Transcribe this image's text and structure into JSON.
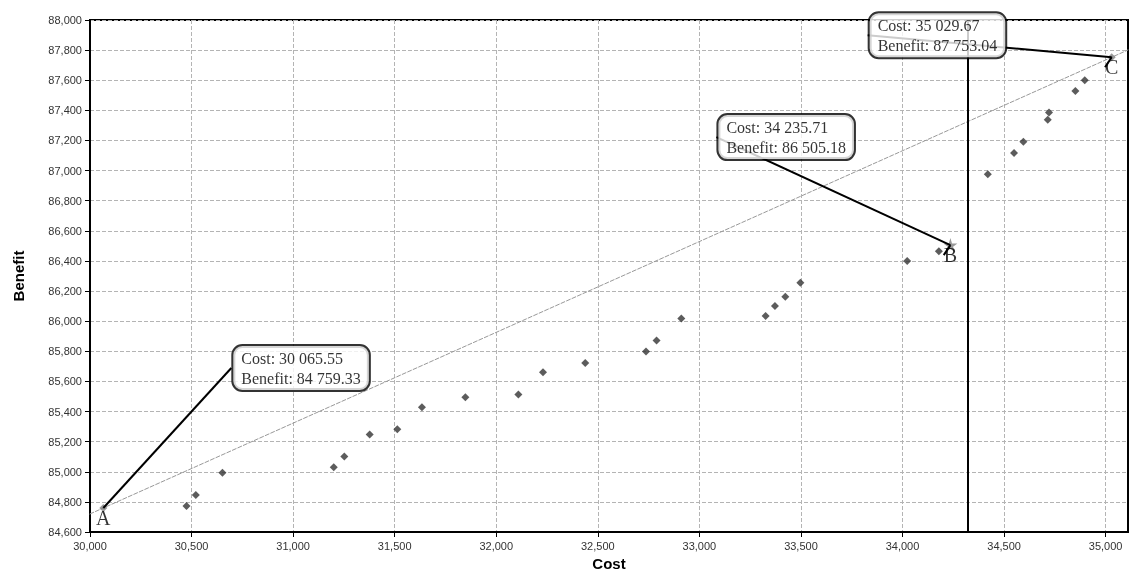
{
  "chart_data": {
    "type": "scatter",
    "xlabel": "Cost",
    "ylabel": "Benefit",
    "xlim": [
      30000,
      35110
    ],
    "ylim": [
      84600,
      88000
    ],
    "xticks": [
      {
        "value": 30000,
        "label": "30,000"
      },
      {
        "value": 30500,
        "label": "30,500"
      },
      {
        "value": 31000,
        "label": "31,000"
      },
      {
        "value": 31500,
        "label": "31,500"
      },
      {
        "value": 32000,
        "label": "32,000"
      },
      {
        "value": 32500,
        "label": "32,500"
      },
      {
        "value": 33000,
        "label": "33,000"
      },
      {
        "value": 33500,
        "label": "33,500"
      },
      {
        "value": 34000,
        "label": "34,000"
      },
      {
        "value": 34500,
        "label": "34,500"
      },
      {
        "value": 35000,
        "label": "35,000"
      }
    ],
    "yticks": [
      {
        "value": 84600,
        "label": "84,600"
      },
      {
        "value": 84800,
        "label": "84,800"
      },
      {
        "value": 85000,
        "label": "85,000"
      },
      {
        "value": 85200,
        "label": "85,200"
      },
      {
        "value": 85400,
        "label": "85,400"
      },
      {
        "value": 85600,
        "label": "85,600"
      },
      {
        "value": 85800,
        "label": "85,800"
      },
      {
        "value": 86000,
        "label": "86,000"
      },
      {
        "value": 86200,
        "label": "86,200"
      },
      {
        "value": 86400,
        "label": "86,400"
      },
      {
        "value": 86600,
        "label": "86,600"
      },
      {
        "value": 86800,
        "label": "86,800"
      },
      {
        "value": 87000,
        "label": "87,000"
      },
      {
        "value": 87200,
        "label": "87,200"
      },
      {
        "value": 87400,
        "label": "87,400"
      },
      {
        "value": 87600,
        "label": "87,600"
      },
      {
        "value": 87800,
        "label": "87,800"
      },
      {
        "value": 88000,
        "label": "88,000"
      }
    ],
    "grid": true,
    "series": [
      {
        "type": "line",
        "color": "#999999",
        "marker": "none",
        "line_style": "dashed",
        "x": [
          30000,
          35110
        ],
        "values": [
          84720,
          87801
        ]
      },
      {
        "color": "#333333",
        "marker": "diamond",
        "x": [
          30475,
          30521,
          30652,
          31200,
          31252,
          31377,
          31513,
          31634,
          31848,
          32109,
          32230,
          32438,
          32737,
          32789,
          32911,
          33326,
          33372,
          33423,
          33497,
          34023,
          34179,
          34420,
          34549,
          34595,
          34715,
          34721,
          34851,
          34897
        ],
        "values": [
          84772,
          84846,
          84993,
          85030,
          85101,
          85248,
          85283,
          85428,
          85495,
          85513,
          85661,
          85723,
          85798,
          85872,
          86017,
          86035,
          86100,
          86163,
          86256,
          86400,
          86464,
          86975,
          87117,
          87191,
          87338,
          87386,
          87529,
          87600
        ]
      },
      {
        "color": "#808080",
        "marker": "diamond",
        "x": [
          30065.55,
          35029.67
        ],
        "values": [
          84759.33,
          87753.04
        ]
      },
      {
        "color": "#808080",
        "marker": "star",
        "x": [
          34235.71
        ],
        "values": [
          86505.18
        ]
      }
    ],
    "ref_lines": [
      {
        "axis": "x",
        "value": 34320,
        "color": "#000000",
        "line_style": "solid"
      }
    ],
    "annotations": [
      {
        "text": "A",
        "x": 30065.55,
        "y": 84759.33
      },
      {
        "text": "B",
        "x": 34235.71,
        "y": 86505.18
      },
      {
        "text": "C",
        "x": 35029.67,
        "y": 87753.04
      },
      {
        "text": "Cost: 30 065.55\nBenefit: 84 759.33",
        "x": 30065.55,
        "y": 84759.33
      },
      {
        "text": "Cost: 34 235.71\nBenefit: 86 505.18",
        "x": 34235.71,
        "y": 86505.18
      },
      {
        "text": "Cost: 35 029.67\nBenefit: 87 753.04",
        "x": 35029.67,
        "y": 87753.04
      }
    ]
  }
}
